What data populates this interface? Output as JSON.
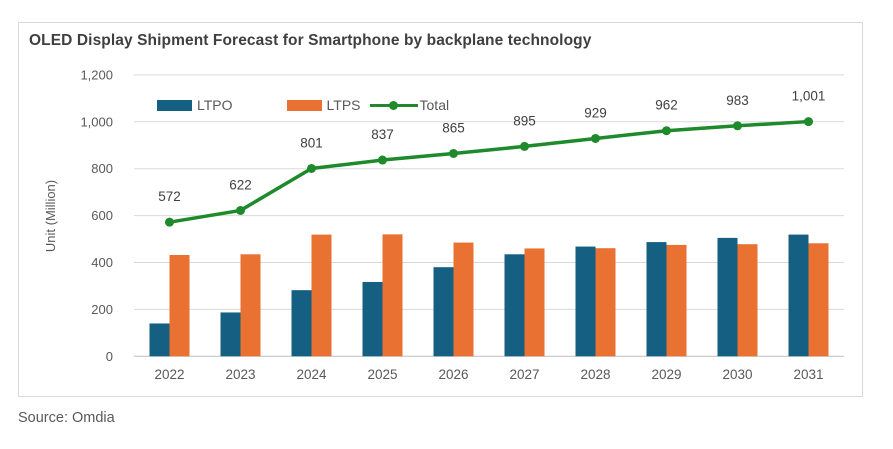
{
  "title": "OLED Display Shipment Forecast for Smartphone by backplane technology",
  "source": "Source: Omdia",
  "colors": {
    "ltpo_bar": "#156082",
    "ltps_bar": "#E97132",
    "total_line": "#1E8A2B",
    "gridline": "#D9D9D9",
    "zero_axis": "#BFBFBF",
    "tick_text": "#595959",
    "data_label_text": "#404040",
    "title_text": "#3F3F3F",
    "card_border": "#D9D9D9"
  },
  "chart_data": {
    "type": "combo",
    "title": "OLED Display Shipment Forecast for Smartphone by backplane technology",
    "xlabel": "",
    "ylabel": "Unit (Million)",
    "ylim": [
      0,
      1200
    ],
    "ytick_step": 200,
    "ytick_labels": [
      "0",
      "200",
      "400",
      "600",
      "800",
      "1,000",
      "1,200"
    ],
    "grid": "horizontal",
    "legend_position": "top-left-inside",
    "categories": [
      "2022",
      "2023",
      "2024",
      "2025",
      "2026",
      "2027",
      "2028",
      "2029",
      "2030",
      "2031"
    ],
    "series": [
      {
        "name": "LTPO",
        "type": "bar",
        "color": "#156082",
        "values": [
          140,
          187,
          282,
          317,
          380,
          435,
          468,
          487,
          505,
          519
        ]
      },
      {
        "name": "LTPS",
        "type": "bar",
        "color": "#E97132",
        "values": [
          432,
          435,
          519,
          520,
          485,
          460,
          461,
          475,
          478,
          482
        ]
      },
      {
        "name": "Total",
        "type": "line",
        "color": "#1E8A2B",
        "values": [
          572,
          622,
          801,
          837,
          865,
          895,
          929,
          962,
          983,
          1001
        ],
        "data_labels": [
          "572",
          "622",
          "801",
          "837",
          "865",
          "895",
          "929",
          "962",
          "983",
          "1,001"
        ]
      }
    ]
  }
}
